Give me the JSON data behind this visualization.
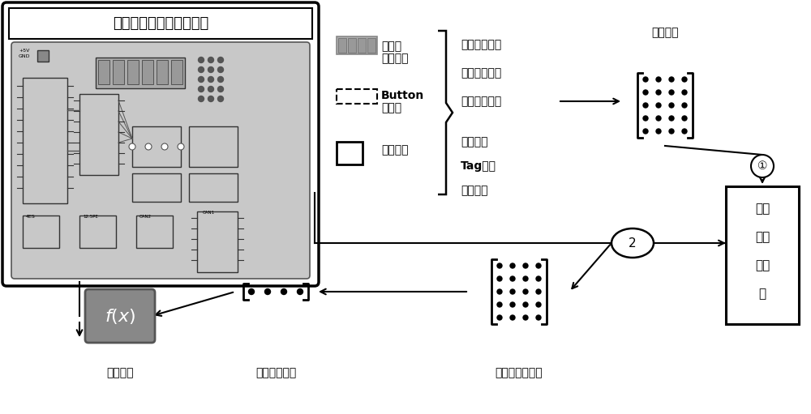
{
  "bg_color": "#ffffff",
  "window_title": "电路连线及在线模拟窗口",
  "legend_digit_text1": "用户自",
  "legend_digit_text2": "定义控件",
  "legend_button_text1": "Button",
  "legend_button_text2": "控件集",
  "legend_square_text": "背景图片",
  "brace_top1": "鼠标经过事件",
  "brace_top2": "鼠标移出事件",
  "brace_top3": "鼠标点击事件",
  "brace_bot1": "鼠标形状",
  "brace_bot2": "Tag属性",
  "brace_bot3": "颜色属性",
  "matrix_label": "连线矩阵",
  "box_line1": "下载",
  "box_line2": "及通",
  "box_line3": "信模",
  "box_line4": "块",
  "label_display": "显示函数",
  "label_pin": "管脚状态向量",
  "label_register": "寄存器状态矩阵",
  "circle1_label": "①",
  "circle2_label": "2"
}
